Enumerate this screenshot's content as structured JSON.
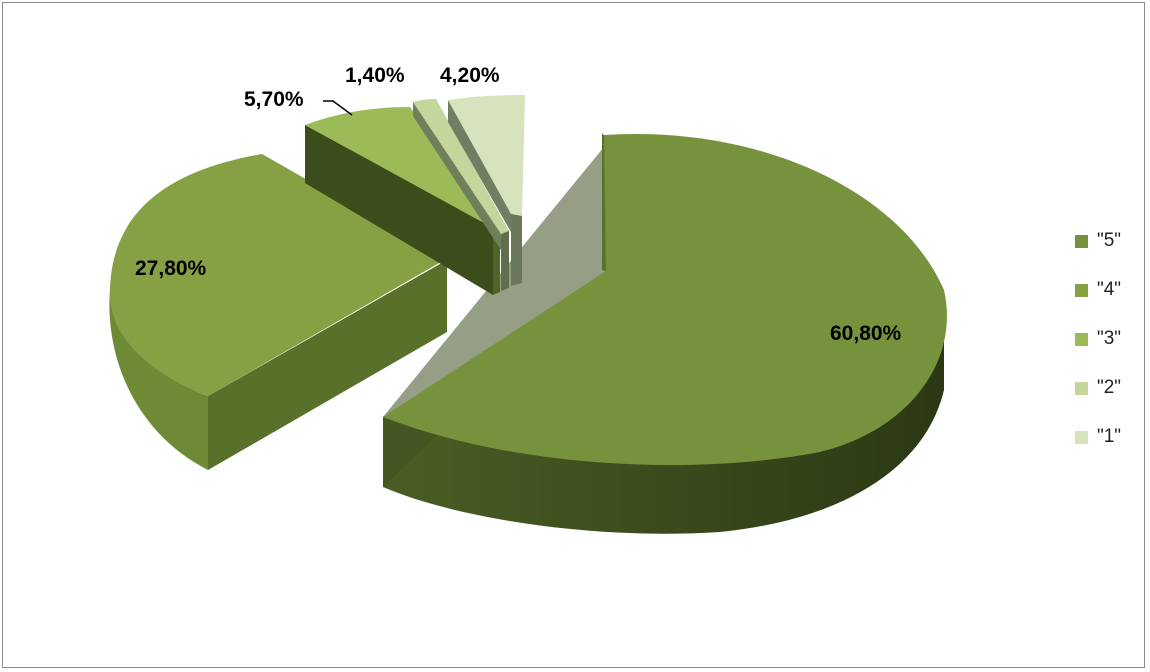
{
  "chart_data": {
    "type": "pie",
    "title": "",
    "categories": [
      "\"5\"",
      "\"4\"",
      "\"3\"",
      "\"2\"",
      "\"1\""
    ],
    "values": [
      60.8,
      27.8,
      5.7,
      1.4,
      4.2
    ],
    "labels": [
      "60,80%",
      "27,80%",
      "5,70%",
      "1,40%",
      "4,20%"
    ],
    "colors": [
      "#76923c",
      "#86a044",
      "#9bbb59",
      "#c3d69b",
      "#d6e3bc"
    ],
    "legend_position": "right",
    "style": "3d-exploded"
  }
}
